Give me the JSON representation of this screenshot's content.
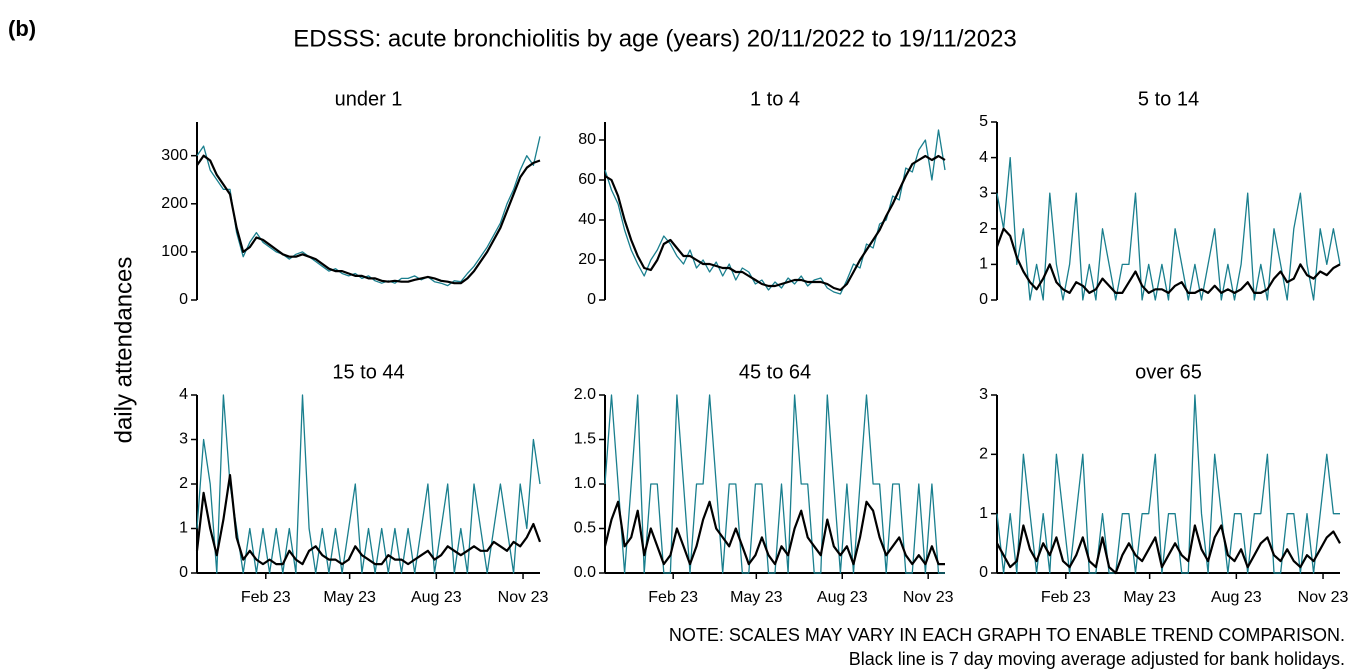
{
  "figure": {
    "panel_label": "(b)",
    "title": "EDSSS: acute bronchiolitis by age (years) 20/11/2022 to 19/11/2023",
    "ylabel": "daily attendances",
    "notes": [
      "NOTE: SCALES MAY VARY IN EACH GRAPH TO ENABLE TREND COMPARISON.",
      "Black line is 7 day moving average adjusted for bank holidays."
    ]
  },
  "chart_data": [
    {
      "type": "line",
      "title": "under 1",
      "x": [
        0,
        7,
        14,
        21,
        28,
        35,
        42,
        49,
        56,
        63,
        70,
        77,
        84,
        91,
        98,
        105,
        112,
        119,
        126,
        133,
        140,
        147,
        154,
        161,
        168,
        175,
        182,
        189,
        196,
        203,
        210,
        217,
        224,
        231,
        238,
        245,
        252,
        259,
        266,
        273,
        280,
        287,
        294,
        301,
        308,
        315,
        322,
        329,
        336,
        343,
        350,
        357,
        364
      ],
      "xlim": [
        0,
        364
      ],
      "ylim": [
        0,
        370
      ],
      "yticks": [
        0,
        100,
        200,
        300
      ],
      "series": [
        {
          "color": "#1a7f8e",
          "values": [
            300,
            320,
            270,
            250,
            230,
            230,
            140,
            90,
            120,
            140,
            120,
            110,
            100,
            95,
            85,
            95,
            100,
            90,
            80,
            70,
            60,
            65,
            55,
            50,
            55,
            45,
            50,
            40,
            35,
            40,
            35,
            45,
            45,
            50,
            42,
            48,
            38,
            35,
            30,
            40,
            38,
            55,
            70,
            90,
            110,
            135,
            160,
            200,
            230,
            270,
            300,
            280,
            340
          ]
        },
        {
          "color": "#000000",
          "values": [
            280,
            300,
            290,
            260,
            240,
            220,
            150,
            100,
            110,
            130,
            125,
            115,
            105,
            95,
            90,
            90,
            95,
            90,
            85,
            75,
            65,
            60,
            60,
            55,
            50,
            50,
            45,
            45,
            40,
            38,
            40,
            38,
            38,
            42,
            45,
            48,
            45,
            40,
            38,
            35,
            35,
            45,
            60,
            80,
            100,
            125,
            150,
            185,
            220,
            255,
            275,
            285,
            290
          ]
        }
      ]
    },
    {
      "type": "line",
      "title": "1 to 4",
      "x": [
        0,
        7,
        14,
        21,
        28,
        35,
        42,
        49,
        56,
        63,
        70,
        77,
        84,
        91,
        98,
        105,
        112,
        119,
        126,
        133,
        140,
        147,
        154,
        161,
        168,
        175,
        182,
        189,
        196,
        203,
        210,
        217,
        224,
        231,
        238,
        245,
        252,
        259,
        266,
        273,
        280,
        287,
        294,
        301,
        308,
        315,
        322,
        329,
        336,
        343,
        350,
        357,
        364
      ],
      "xlim": [
        0,
        364
      ],
      "ylim": [
        0,
        89
      ],
      "yticks": [
        0,
        20,
        40,
        60,
        80
      ],
      "series": [
        {
          "color": "#1a7f8e",
          "values": [
            65,
            55,
            48,
            35,
            25,
            18,
            12,
            20,
            25,
            32,
            28,
            22,
            18,
            25,
            16,
            20,
            14,
            19,
            12,
            18,
            10,
            16,
            14,
            8,
            10,
            5,
            9,
            6,
            11,
            8,
            12,
            7,
            10,
            11,
            6,
            4,
            3,
            10,
            18,
            16,
            28,
            26,
            38,
            40,
            52,
            50,
            66,
            64,
            75,
            80,
            60,
            85,
            65
          ]
        },
        {
          "color": "#000000",
          "values": [
            62,
            60,
            52,
            40,
            30,
            22,
            16,
            15,
            20,
            28,
            30,
            26,
            22,
            22,
            20,
            18,
            18,
            17,
            16,
            16,
            14,
            14,
            12,
            10,
            8,
            7,
            7,
            8,
            9,
            10,
            10,
            9,
            9,
            9,
            8,
            6,
            5,
            8,
            14,
            20,
            25,
            30,
            35,
            42,
            48,
            55,
            62,
            68,
            70,
            72,
            70,
            72,
            70
          ]
        }
      ]
    },
    {
      "type": "line",
      "title": "5 to 14",
      "x": [
        0,
        7,
        14,
        21,
        28,
        35,
        42,
        49,
        56,
        63,
        70,
        77,
        84,
        91,
        98,
        105,
        112,
        119,
        126,
        133,
        140,
        147,
        154,
        161,
        168,
        175,
        182,
        189,
        196,
        203,
        210,
        217,
        224,
        231,
        238,
        245,
        252,
        259,
        266,
        273,
        280,
        287,
        294,
        301,
        308,
        315,
        322,
        329,
        336,
        343,
        350,
        357,
        364
      ],
      "xlim": [
        0,
        364
      ],
      "ylim": [
        0,
        5
      ],
      "yticks": [
        0,
        1,
        2,
        3,
        4,
        5
      ],
      "series": [
        {
          "color": "#1a7f8e",
          "values": [
            3,
            2,
            4,
            1,
            2,
            0,
            1,
            0,
            3,
            1,
            0,
            1,
            3,
            0,
            1,
            0,
            2,
            1,
            0,
            1,
            1,
            3,
            0,
            1,
            0,
            1,
            0,
            2,
            1,
            0,
            1,
            0,
            1,
            2,
            0,
            1,
            0,
            1,
            3,
            0,
            1,
            0,
            2,
            1,
            0,
            2,
            3,
            1,
            0,
            2,
            1,
            2,
            1
          ]
        },
        {
          "color": "#000000",
          "values": [
            1.5,
            2,
            1.8,
            1.2,
            0.8,
            0.5,
            0.3,
            0.6,
            1,
            0.5,
            0.3,
            0.2,
            0.5,
            0.4,
            0.2,
            0.3,
            0.6,
            0.4,
            0.2,
            0.2,
            0.5,
            0.8,
            0.4,
            0.2,
            0.3,
            0.3,
            0.2,
            0.4,
            0.5,
            0.2,
            0.2,
            0.3,
            0.2,
            0.4,
            0.2,
            0.3,
            0.2,
            0.3,
            0.5,
            0.2,
            0.2,
            0.3,
            0.6,
            0.8,
            0.5,
            0.6,
            1,
            0.7,
            0.6,
            0.8,
            0.7,
            0.9,
            1
          ]
        }
      ]
    },
    {
      "type": "line",
      "title": "15 to 44",
      "x": [
        0,
        7,
        14,
        21,
        28,
        35,
        42,
        49,
        56,
        63,
        70,
        77,
        84,
        91,
        98,
        105,
        112,
        119,
        126,
        133,
        140,
        147,
        154,
        161,
        168,
        175,
        182,
        189,
        196,
        203,
        210,
        217,
        224,
        231,
        238,
        245,
        252,
        259,
        266,
        273,
        280,
        287,
        294,
        301,
        308,
        315,
        322,
        329,
        336,
        343,
        350,
        357,
        364
      ],
      "xlim": [
        0,
        364
      ],
      "ylim": [
        0,
        4
      ],
      "yticks": [
        0,
        1,
        2,
        3,
        4
      ],
      "xticks": [
        {
          "value": 73,
          "label": "Feb 23"
        },
        {
          "value": 162,
          "label": "May 23"
        },
        {
          "value": 254,
          "label": "Aug 23"
        },
        {
          "value": 346,
          "label": "Nov 23"
        }
      ],
      "series": [
        {
          "color": "#1a7f8e",
          "values": [
            1,
            3,
            2,
            0,
            4,
            2,
            1,
            0,
            1,
            0,
            1,
            0,
            1,
            0,
            1,
            0,
            4,
            1,
            0,
            1,
            0,
            1,
            0,
            1,
            2,
            0,
            1,
            0,
            1,
            0,
            1,
            0,
            1,
            0,
            1,
            2,
            0,
            1,
            2,
            0,
            1,
            0,
            2,
            1,
            0,
            1,
            2,
            1,
            0,
            2,
            1,
            3,
            2
          ]
        },
        {
          "color": "#000000",
          "values": [
            0.5,
            1.8,
            1,
            0.4,
            1.2,
            2.2,
            0.8,
            0.3,
            0.5,
            0.3,
            0.2,
            0.3,
            0.2,
            0.2,
            0.5,
            0.3,
            0.2,
            0.5,
            0.6,
            0.4,
            0.3,
            0.3,
            0.2,
            0.3,
            0.6,
            0.4,
            0.3,
            0.2,
            0.2,
            0.4,
            0.3,
            0.3,
            0.2,
            0.3,
            0.4,
            0.5,
            0.3,
            0.4,
            0.6,
            0.5,
            0.4,
            0.5,
            0.6,
            0.5,
            0.5,
            0.7,
            0.6,
            0.5,
            0.7,
            0.6,
            0.8,
            1.1,
            0.7
          ]
        }
      ]
    },
    {
      "type": "line",
      "title": "45 to 64",
      "x": [
        0,
        7,
        14,
        21,
        28,
        35,
        42,
        49,
        56,
        63,
        70,
        77,
        84,
        91,
        98,
        105,
        112,
        119,
        126,
        133,
        140,
        147,
        154,
        161,
        168,
        175,
        182,
        189,
        196,
        203,
        210,
        217,
        224,
        231,
        238,
        245,
        252,
        259,
        266,
        273,
        280,
        287,
        294,
        301,
        308,
        315,
        322,
        329,
        336,
        343,
        350,
        357,
        364
      ],
      "xlim": [
        0,
        364
      ],
      "ylim": [
        0,
        2
      ],
      "yticks": [
        {
          "value": 0,
          "label": "0.0"
        },
        {
          "value": 0.5,
          "label": "0.5"
        },
        {
          "value": 1,
          "label": "1.0"
        },
        {
          "value": 1.5,
          "label": "1.5"
        },
        {
          "value": 2,
          "label": "2.0"
        }
      ],
      "xticks": [
        {
          "value": 73,
          "label": "Feb 23"
        },
        {
          "value": 162,
          "label": "May 23"
        },
        {
          "value": 254,
          "label": "Aug 23"
        },
        {
          "value": 346,
          "label": "Nov 23"
        }
      ],
      "series": [
        {
          "color": "#1a7f8e",
          "values": [
            1,
            2,
            1,
            0,
            1,
            2,
            0,
            1,
            1,
            0,
            0,
            2,
            1,
            0,
            1,
            1,
            2,
            1,
            0,
            1,
            1,
            0,
            0,
            1,
            1,
            0,
            0,
            1,
            0,
            2,
            1,
            1,
            0,
            0,
            2,
            1,
            0,
            1,
            0,
            1,
            2,
            1,
            1,
            0,
            1,
            1,
            0,
            0,
            1,
            0,
            1,
            0,
            0
          ]
        },
        {
          "color": "#000000",
          "values": [
            0.3,
            0.6,
            0.8,
            0.3,
            0.4,
            0.7,
            0.2,
            0.5,
            0.3,
            0.1,
            0.2,
            0.5,
            0.3,
            0.1,
            0.3,
            0.6,
            0.8,
            0.5,
            0.4,
            0.3,
            0.5,
            0.3,
            0.1,
            0.2,
            0.4,
            0.2,
            0.1,
            0.3,
            0.2,
            0.5,
            0.7,
            0.4,
            0.3,
            0.2,
            0.6,
            0.3,
            0.2,
            0.3,
            0.1,
            0.4,
            0.8,
            0.7,
            0.4,
            0.2,
            0.3,
            0.4,
            0.2,
            0.1,
            0.2,
            0.1,
            0.3,
            0.1,
            0.1
          ]
        }
      ]
    },
    {
      "type": "line",
      "title": "over 65",
      "x": [
        0,
        7,
        14,
        21,
        28,
        35,
        42,
        49,
        56,
        63,
        70,
        77,
        84,
        91,
        98,
        105,
        112,
        119,
        126,
        133,
        140,
        147,
        154,
        161,
        168,
        175,
        182,
        189,
        196,
        203,
        210,
        217,
        224,
        231,
        238,
        245,
        252,
        259,
        266,
        273,
        280,
        287,
        294,
        301,
        308,
        315,
        322,
        329,
        336,
        343,
        350,
        357,
        364
      ],
      "xlim": [
        0,
        364
      ],
      "ylim": [
        0,
        3
      ],
      "yticks": [
        0,
        1,
        2,
        3
      ],
      "xticks": [
        {
          "value": 73,
          "label": "Feb 23"
        },
        {
          "value": 162,
          "label": "May 23"
        },
        {
          "value": 254,
          "label": "Aug 23"
        },
        {
          "value": 346,
          "label": "Nov 23"
        }
      ],
      "series": [
        {
          "color": "#1a7f8e",
          "values": [
            1,
            0,
            1,
            0,
            2,
            1,
            0,
            1,
            0,
            2,
            1,
            0,
            1,
            2,
            0,
            0,
            1,
            0,
            0,
            1,
            1,
            0,
            1,
            1,
            2,
            0,
            1,
            1,
            0,
            0,
            3,
            1,
            0,
            2,
            1,
            0,
            1,
            1,
            0,
            1,
            1,
            2,
            0,
            0,
            1,
            1,
            0,
            1,
            0,
            1,
            2,
            1,
            1
          ]
        },
        {
          "color": "#000000",
          "values": [
            0.5,
            0.3,
            0.1,
            0.2,
            0.8,
            0.4,
            0.2,
            0.5,
            0.3,
            0.6,
            0.2,
            0.1,
            0.3,
            0.6,
            0.2,
            0.1,
            0.6,
            0.1,
            0,
            0.3,
            0.5,
            0.3,
            0.2,
            0.4,
            0.6,
            0.1,
            0.3,
            0.5,
            0.3,
            0.2,
            0.8,
            0.4,
            0.2,
            0.6,
            0.8,
            0.3,
            0.2,
            0.4,
            0.1,
            0.3,
            0.5,
            0.6,
            0.3,
            0.2,
            0.4,
            0.2,
            0.1,
            0.3,
            0.2,
            0.4,
            0.6,
            0.7,
            0.5
          ]
        }
      ]
    }
  ]
}
